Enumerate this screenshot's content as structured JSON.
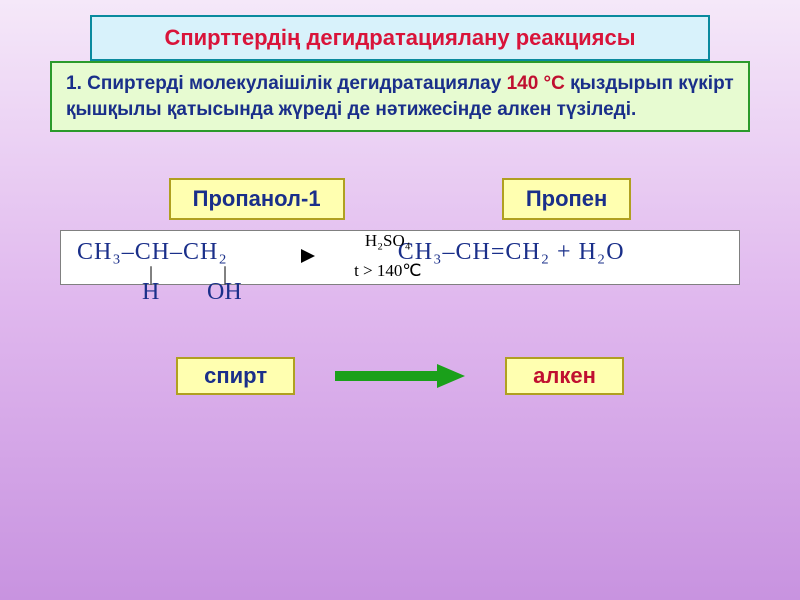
{
  "colors": {
    "title_bg": "#d8f2fb",
    "title_border": "#0a8a9e",
    "title_text": "#d9143a",
    "desc_bg": "#e7fbd1",
    "desc_border": "#2b9a2b",
    "desc_text": "#1a2f8a",
    "desc_temp_text": "#c01030",
    "label_bg": "#ffffb0",
    "label_border": "#b0a020",
    "label_text": "#1a2f8a",
    "eq_border": "#808080",
    "eq_bg": "#ffffff",
    "formula_text": "#1a2f8a",
    "atom_text": "#000000",
    "arrow_color": "#000000",
    "green_arrow": "#1aa01a",
    "spirt_text": "#1a2f8a",
    "alken_text": "#c01030"
  },
  "title": "Спирттердің дегидратациялану реакциясы",
  "description": {
    "prefix": "1. Спиртерді молекулаішілік дегидратациялау ",
    "temp": "140 °С",
    "suffix": " қыздырып күкірт қышқылы қатысында жүреді де нәтижесінде алкен түзіледі."
  },
  "label_left": "Пропанол-1",
  "label_right": "Пропен",
  "equation": {
    "left_top": "CH₃–CH–CH₂",
    "bond_sym": "|",
    "atom_h": "H",
    "atom_oh": "OH",
    "cond_top": "H₂SO₄",
    "cond_bot": "t > 140℃",
    "right": "CH₃–CH=CH₂ + H₂O"
  },
  "bottom_left": "спирт",
  "bottom_right": "алкен"
}
